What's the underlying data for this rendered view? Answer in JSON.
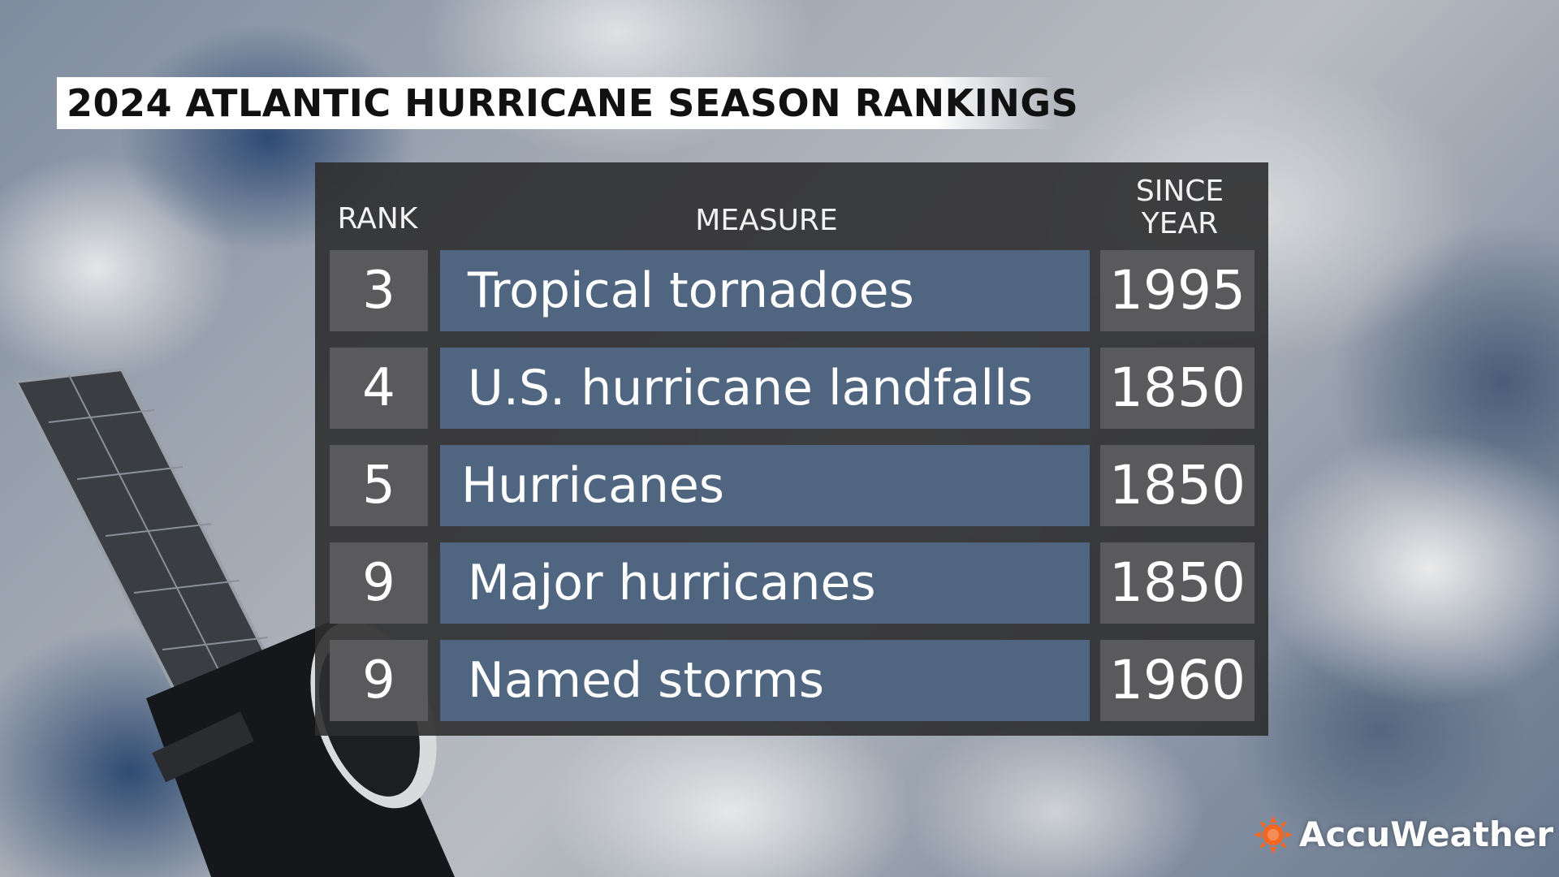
{
  "title": "2024 ATLANTIC HURRICANE SEASON RANKINGS",
  "headers": {
    "rank": "RANK",
    "measure": "MEASURE",
    "since_year": "SINCE YEAR"
  },
  "rows": [
    {
      "rank": "3",
      "measure": "Tropical tornadoes",
      "since_year": "1995"
    },
    {
      "rank": "4",
      "measure": "U.S. hurricane landfalls",
      "since_year": "1850"
    },
    {
      "rank": "5",
      "measure": "Hurricanes",
      "since_year": "1850"
    },
    {
      "rank": "9",
      "measure": "Major hurricanes",
      "since_year": "1850"
    },
    {
      "rank": "9",
      "measure": "Named storms",
      "since_year": "1960"
    }
  ],
  "brand": {
    "name": "AccuWeather",
    "icon": "sun-icon",
    "color": "#f26722"
  },
  "colors": {
    "measure_cell": "#4f6580",
    "rank_cell": "#5a5a5c",
    "panel": "#2d2d2f"
  }
}
